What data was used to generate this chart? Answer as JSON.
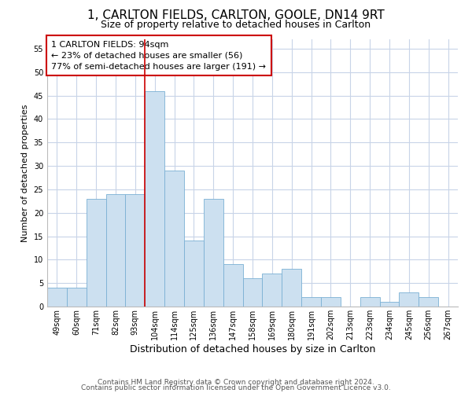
{
  "title": "1, CARLTON FIELDS, CARLTON, GOOLE, DN14 9RT",
  "subtitle": "Size of property relative to detached houses in Carlton",
  "xlabel": "Distribution of detached houses by size in Carlton",
  "ylabel": "Number of detached properties",
  "categories": [
    "49sqm",
    "60sqm",
    "71sqm",
    "82sqm",
    "93sqm",
    "104sqm",
    "114sqm",
    "125sqm",
    "136sqm",
    "147sqm",
    "158sqm",
    "169sqm",
    "180sqm",
    "191sqm",
    "202sqm",
    "213sqm",
    "223sqm",
    "234sqm",
    "245sqm",
    "256sqm",
    "267sqm"
  ],
  "values": [
    4,
    4,
    23,
    24,
    24,
    46,
    29,
    14,
    23,
    9,
    6,
    7,
    8,
    2,
    2,
    0,
    2,
    1,
    3,
    2,
    0
  ],
  "bar_color": "#cce0f0",
  "bar_edge_color": "#7ab0d4",
  "vline_x_index": 4,
  "vline_color": "#cc0000",
  "ylim": [
    0,
    57
  ],
  "yticks": [
    0,
    5,
    10,
    15,
    20,
    25,
    30,
    35,
    40,
    45,
    50,
    55
  ],
  "annotation_box_text": "1 CARLTON FIELDS: 94sqm\n← 23% of detached houses are smaller (56)\n77% of semi-detached houses are larger (191) →",
  "footer_line1": "Contains HM Land Registry data © Crown copyright and database right 2024.",
  "footer_line2": "Contains public sector information licensed under the Open Government Licence v3.0.",
  "background_color": "#ffffff",
  "grid_color": "#c8d4e8",
  "title_fontsize": 11,
  "subtitle_fontsize": 9,
  "xlabel_fontsize": 9,
  "ylabel_fontsize": 8,
  "tick_fontsize": 7,
  "annotation_fontsize": 8,
  "footer_fontsize": 6.5
}
